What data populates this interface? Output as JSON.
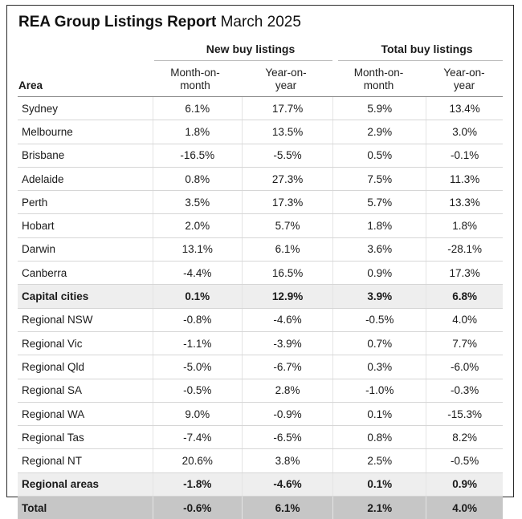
{
  "title": {
    "bold": "REA Group Listings Report",
    "month": "March 2025"
  },
  "groups": [
    "New buy listings",
    "Total buy listings"
  ],
  "columns": {
    "area": "Area",
    "mom": [
      "Month-on-",
      "month"
    ],
    "yoy": [
      "Year-on-",
      "year"
    ]
  },
  "rows": [
    {
      "area": "Sydney",
      "v": [
        "6.1%",
        "17.7%",
        "5.9%",
        "13.4%"
      ],
      "type": "normal"
    },
    {
      "area": "Melbourne",
      "v": [
        "1.8%",
        "13.5%",
        "2.9%",
        "3.0%"
      ],
      "type": "normal"
    },
    {
      "area": "Brisbane",
      "v": [
        "-16.5%",
        "-5.5%",
        "0.5%",
        "-0.1%"
      ],
      "type": "normal"
    },
    {
      "area": "Adelaide",
      "v": [
        "0.8%",
        "27.3%",
        "7.5%",
        "11.3%"
      ],
      "type": "normal"
    },
    {
      "area": "Perth",
      "v": [
        "3.5%",
        "17.3%",
        "5.7%",
        "13.3%"
      ],
      "type": "normal"
    },
    {
      "area": "Hobart",
      "v": [
        "2.0%",
        "5.7%",
        "1.8%",
        "1.8%"
      ],
      "type": "normal"
    },
    {
      "area": "Darwin",
      "v": [
        "13.1%",
        "6.1%",
        "3.6%",
        "-28.1%"
      ],
      "type": "normal"
    },
    {
      "area": "Canberra",
      "v": [
        "-4.4%",
        "16.5%",
        "0.9%",
        "17.3%"
      ],
      "type": "normal"
    },
    {
      "area": "Capital cities",
      "v": [
        "0.1%",
        "12.9%",
        "3.9%",
        "6.8%"
      ],
      "type": "sub"
    },
    {
      "area": "Regional NSW",
      "v": [
        "-0.8%",
        "-4.6%",
        "-0.5%",
        "4.0%"
      ],
      "type": "normal"
    },
    {
      "area": "Regional Vic",
      "v": [
        "-1.1%",
        "-3.9%",
        "0.7%",
        "7.7%"
      ],
      "type": "normal"
    },
    {
      "area": "Regional Qld",
      "v": [
        "-5.0%",
        "-6.7%",
        "0.3%",
        "-6.0%"
      ],
      "type": "normal"
    },
    {
      "area": "Regional SA",
      "v": [
        "-0.5%",
        "2.8%",
        "-1.0%",
        "-0.3%"
      ],
      "type": "normal"
    },
    {
      "area": "Regional WA",
      "v": [
        "9.0%",
        "-0.9%",
        "0.1%",
        "-15.3%"
      ],
      "type": "normal"
    },
    {
      "area": "Regional Tas",
      "v": [
        "-7.4%",
        "-6.5%",
        "0.8%",
        "8.2%"
      ],
      "type": "normal"
    },
    {
      "area": "Regional NT",
      "v": [
        "20.6%",
        "3.8%",
        "2.5%",
        "-0.5%"
      ],
      "type": "normal"
    },
    {
      "area": "Regional areas",
      "v": [
        "-1.8%",
        "-4.6%",
        "0.1%",
        "0.9%"
      ],
      "type": "sub"
    },
    {
      "area": "Total",
      "v": [
        "-0.6%",
        "6.1%",
        "2.1%",
        "4.0%"
      ],
      "type": "tot"
    }
  ]
}
